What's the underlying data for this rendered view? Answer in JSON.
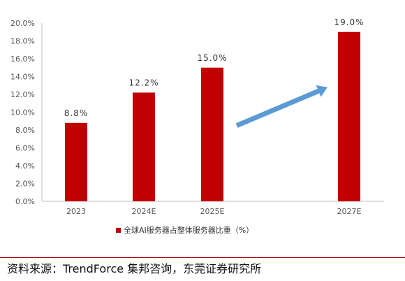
{
  "chart_data": {
    "type": "bar",
    "categories": [
      "2023",
      "2024E",
      "2025E",
      "2027E"
    ],
    "series": [
      {
        "name": "全球AI服务器占整体服务器比重（%）",
        "values": [
          8.8,
          12.2,
          15.0,
          19.0
        ],
        "data_labels": [
          "8.8%",
          "12.2%",
          "15.0%",
          "19.0%"
        ],
        "color": "#c00000"
      }
    ],
    "y_ticks": [
      "0.0%",
      "2.0%",
      "4.0%",
      "6.0%",
      "8.0%",
      "10.0%",
      "12.0%",
      "14.0%",
      "16.0%",
      "18.0%",
      "20.0%"
    ],
    "ylim": [
      0,
      20
    ],
    "grid": false,
    "legend_position": "bottom",
    "annotation": {
      "type": "arrow",
      "color": "#5b9bd5",
      "from": [
        "2025E",
        8.5
      ],
      "to": [
        "2027E",
        12.8
      ]
    }
  },
  "source": "资料来源：TrendForce 集邦咨询，东莞证券研究所"
}
